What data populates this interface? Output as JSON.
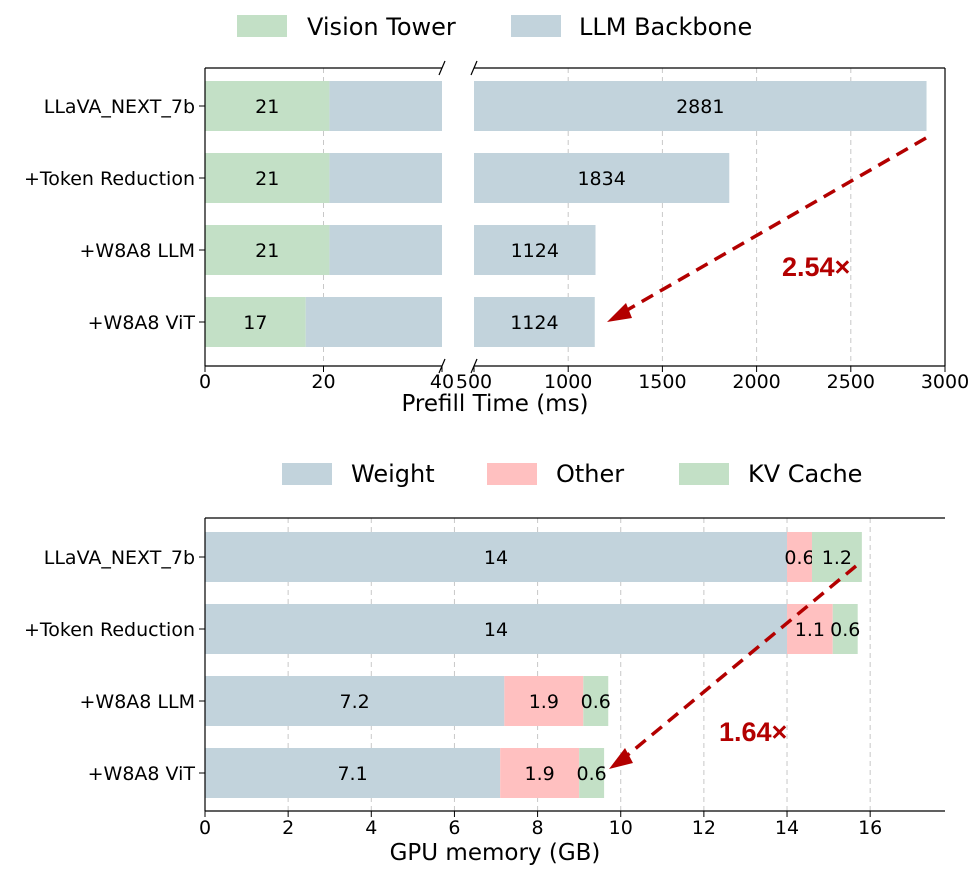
{
  "chart_data": [
    {
      "type": "bar",
      "orientation": "horizontal",
      "stacked": true,
      "broken_x_axis": true,
      "categories": [
        "LLaVA_NEXT_7b",
        "+Token Reduction",
        "+W8A8 LLM",
        "+W8A8 ViT"
      ],
      "series": [
        {
          "name": "Vision Tower",
          "color": "#c3e0c6",
          "values": [
            21,
            21,
            21,
            17
          ]
        },
        {
          "name": "LLM Backbone",
          "color": "#c2d3dc",
          "values": [
            2881,
            1834,
            1124,
            1124
          ]
        }
      ],
      "xlabel": "Prefill Time (ms)",
      "segments": [
        {
          "xlim": [
            0,
            40
          ],
          "ticks": [
            "0",
            "20",
            "40"
          ]
        },
        {
          "xlim": [
            500,
            3000
          ],
          "ticks": [
            "500",
            "1000",
            "1500",
            "2000",
            "2500",
            "3000"
          ]
        }
      ],
      "grid": "x dashed",
      "legend": "top",
      "annotation": {
        "text": "2.54×",
        "arrow_from": "LLaVA_NEXT_7b",
        "arrow_to": "+W8A8 ViT",
        "color": "#b30000"
      }
    },
    {
      "type": "bar",
      "orientation": "horizontal",
      "stacked": true,
      "categories": [
        "LLaVA_NEXT_7b",
        "+Token Reduction",
        "+W8A8 LLM",
        "+W8A8 ViT"
      ],
      "series": [
        {
          "name": "Weight",
          "color": "#c2d3dc",
          "values": [
            14,
            14,
            7.2,
            7.1
          ],
          "labels": [
            "14",
            "14",
            "7.2",
            "7.1"
          ]
        },
        {
          "name": "Other",
          "color": "#ffc0c0",
          "values": [
            0.6,
            1.1,
            1.9,
            1.9
          ],
          "labels": [
            "0.6",
            "1.1",
            "1.9",
            "1.9"
          ]
        },
        {
          "name": "KV Cache",
          "color": "#c3e0c6",
          "values": [
            1.2,
            0.6,
            0.6,
            0.6
          ],
          "labels": [
            "1.2",
            "0.6",
            "0.6",
            "0.6"
          ]
        }
      ],
      "xlabel": "GPU memory (GB)",
      "xlim": [
        0,
        17.8
      ],
      "ticks": [
        "0",
        "2",
        "4",
        "6",
        "8",
        "10",
        "12",
        "14",
        "16"
      ],
      "grid": "x dashed",
      "legend": "top",
      "annotation": {
        "text": "1.64×",
        "arrow_from": "LLaVA_NEXT_7b",
        "arrow_to": "+W8A8 ViT",
        "color": "#b30000"
      }
    }
  ]
}
